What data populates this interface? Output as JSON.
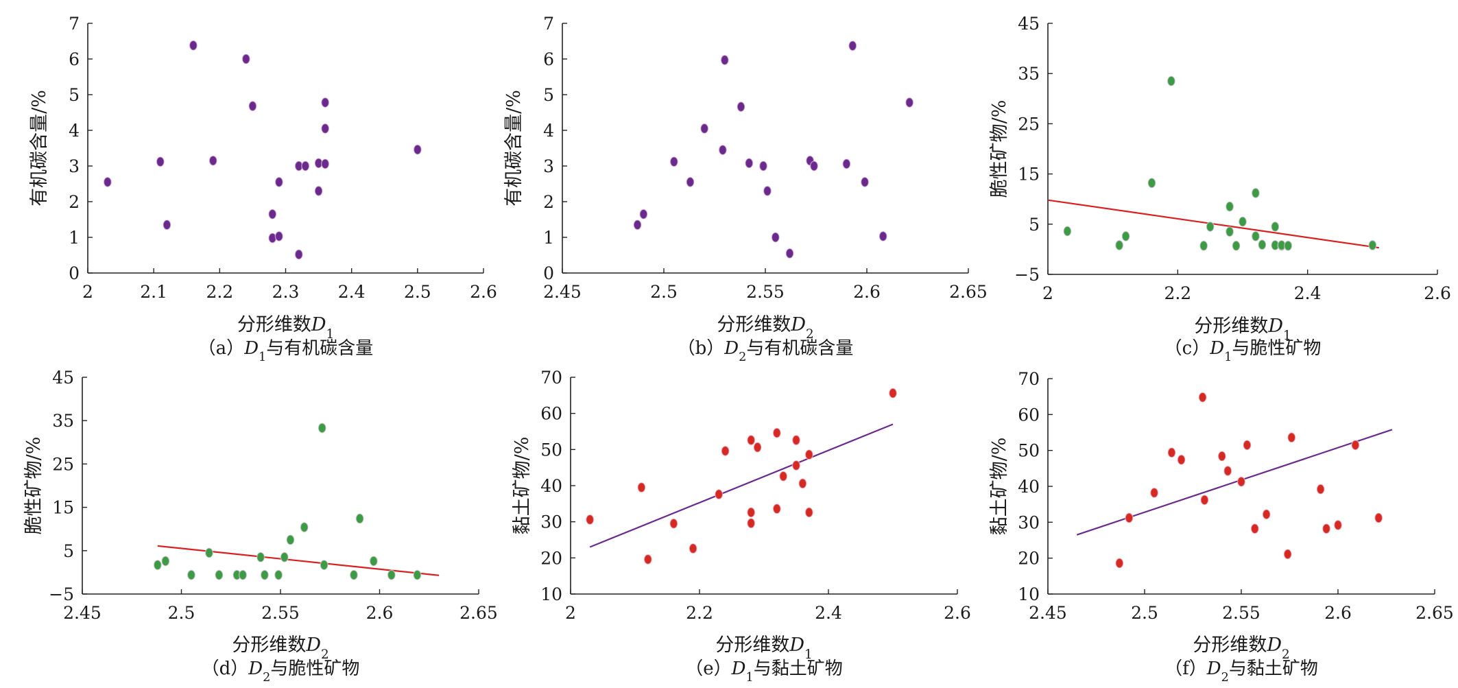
{
  "chart_data": [
    {
      "id": "a",
      "type": "scatter",
      "caption": "（a）D1与有机碳含量",
      "caption_parts": [
        {
          "t": "（a）"
        },
        {
          "t": "D",
          "it": true
        },
        {
          "t": "1",
          "sub": true
        },
        {
          "t": "与有机碳含量"
        }
      ],
      "xlabel": "分形维数D1",
      "xlabel_parts": [
        {
          "t": "分形维数"
        },
        {
          "t": "D",
          "it": true
        },
        {
          "t": "1",
          "sub": true
        }
      ],
      "ylabel": "有机碳含量/%",
      "xlim": [
        2,
        2.6
      ],
      "ylim": [
        0,
        7
      ],
      "xticks": [
        2,
        2.1,
        2.2,
        2.3,
        2.4,
        2.5,
        2.6
      ],
      "xtick_labels": [
        "2",
        "2.1",
        "2.2",
        "2.3",
        "2.4",
        "2.5",
        "2.6"
      ],
      "yticks": [
        0,
        1,
        2,
        3,
        4,
        5,
        6,
        7
      ],
      "ytick_labels": [
        "0",
        "1",
        "2",
        "3",
        "4",
        "5",
        "6",
        "7"
      ],
      "point_color": "#6a2a8c",
      "points": [
        {
          "x": 2.03,
          "y": 2.55
        },
        {
          "x": 2.11,
          "y": 3.12
        },
        {
          "x": 2.12,
          "y": 1.35
        },
        {
          "x": 2.16,
          "y": 6.38
        },
        {
          "x": 2.19,
          "y": 3.15
        },
        {
          "x": 2.24,
          "y": 6.0
        },
        {
          "x": 2.25,
          "y": 4.68
        },
        {
          "x": 2.28,
          "y": 1.65
        },
        {
          "x": 2.28,
          "y": 0.98
        },
        {
          "x": 2.29,
          "y": 1.03
        },
        {
          "x": 2.29,
          "y": 2.55
        },
        {
          "x": 2.32,
          "y": 3.0
        },
        {
          "x": 2.33,
          "y": 3.0
        },
        {
          "x": 2.32,
          "y": 0.52
        },
        {
          "x": 2.35,
          "y": 3.08
        },
        {
          "x": 2.35,
          "y": 2.3
        },
        {
          "x": 2.36,
          "y": 3.06
        },
        {
          "x": 2.36,
          "y": 4.78
        },
        {
          "x": 2.36,
          "y": 4.05
        },
        {
          "x": 2.5,
          "y": 3.46
        }
      ],
      "fit": null
    },
    {
      "id": "b",
      "type": "scatter",
      "caption": "（b）D2与有机碳含量",
      "caption_parts": [
        {
          "t": "（b）"
        },
        {
          "t": "D",
          "it": true
        },
        {
          "t": "2",
          "sub": true
        },
        {
          "t": "与有机碳含量"
        }
      ],
      "xlabel": "分形维数D2",
      "xlabel_parts": [
        {
          "t": "分形维数"
        },
        {
          "t": "D",
          "it": true
        },
        {
          "t": "2",
          "sub": true
        }
      ],
      "ylabel": "有机碳含量/%",
      "xlim": [
        2.45,
        2.65
      ],
      "ylim": [
        0,
        7
      ],
      "xticks": [
        2.45,
        2.5,
        2.55,
        2.6,
        2.65
      ],
      "xtick_labels": [
        "2.45",
        "2.5",
        "2.55",
        "2.6",
        "2.65"
      ],
      "yticks": [
        0,
        1,
        2,
        3,
        4,
        5,
        6,
        7
      ],
      "ytick_labels": [
        "0",
        "1",
        "2",
        "3",
        "4",
        "5",
        "6",
        "7"
      ],
      "point_color": "#6a2a8c",
      "points": [
        {
          "x": 2.487,
          "y": 1.35
        },
        {
          "x": 2.49,
          "y": 1.65
        },
        {
          "x": 2.505,
          "y": 3.12
        },
        {
          "x": 2.513,
          "y": 2.55
        },
        {
          "x": 2.52,
          "y": 4.05
        },
        {
          "x": 2.53,
          "y": 5.97
        },
        {
          "x": 2.529,
          "y": 3.45
        },
        {
          "x": 2.538,
          "y": 4.66
        },
        {
          "x": 2.542,
          "y": 3.08
        },
        {
          "x": 2.549,
          "y": 3.0
        },
        {
          "x": 2.551,
          "y": 2.3
        },
        {
          "x": 2.555,
          "y": 1.0
        },
        {
          "x": 2.562,
          "y": 0.55
        },
        {
          "x": 2.572,
          "y": 3.15
        },
        {
          "x": 2.574,
          "y": 3.0
        },
        {
          "x": 2.59,
          "y": 3.06
        },
        {
          "x": 2.593,
          "y": 6.37
        },
        {
          "x": 2.599,
          "y": 2.55
        },
        {
          "x": 2.608,
          "y": 1.03
        },
        {
          "x": 2.621,
          "y": 4.78
        }
      ],
      "fit": null
    },
    {
      "id": "c",
      "type": "scatter",
      "caption": "（c）D1与脆性矿物",
      "caption_parts": [
        {
          "t": "（c）"
        },
        {
          "t": "D",
          "it": true
        },
        {
          "t": "1",
          "sub": true
        },
        {
          "t": "与脆性矿物"
        }
      ],
      "xlabel": "分形维数D1",
      "xlabel_parts": [
        {
          "t": "分形维数"
        },
        {
          "t": "D",
          "it": true
        },
        {
          "t": "1",
          "sub": true
        }
      ],
      "ylabel": "脆性矿物/%",
      "xlim": [
        2,
        2.6
      ],
      "ylim": [
        -5,
        45
      ],
      "xticks": [
        2,
        2.2,
        2.4,
        2.6
      ],
      "xtick_labels": [
        "2",
        "2.2",
        "2.4",
        "2.6"
      ],
      "yticks": [
        -5,
        5,
        15,
        25,
        35,
        45
      ],
      "ytick_labels": [
        "−5",
        "5",
        "15",
        "25",
        "35",
        "45"
      ],
      "point_color": "#3d9a45",
      "fit_color": "#d92020",
      "points": [
        {
          "x": 2.03,
          "y": 3.6
        },
        {
          "x": 2.11,
          "y": 0.8
        },
        {
          "x": 2.12,
          "y": 2.6
        },
        {
          "x": 2.16,
          "y": 13.2
        },
        {
          "x": 2.19,
          "y": 33.5
        },
        {
          "x": 2.24,
          "y": 0.7
        },
        {
          "x": 2.25,
          "y": 4.5
        },
        {
          "x": 2.28,
          "y": 8.5
        },
        {
          "x": 2.28,
          "y": 3.5
        },
        {
          "x": 2.29,
          "y": 0.7
        },
        {
          "x": 2.3,
          "y": 5.5
        },
        {
          "x": 2.32,
          "y": 2.6
        },
        {
          "x": 2.32,
          "y": 11.2
        },
        {
          "x": 2.33,
          "y": 0.9
        },
        {
          "x": 2.35,
          "y": 4.5
        },
        {
          "x": 2.35,
          "y": 0.8
        },
        {
          "x": 2.36,
          "y": 0.7
        },
        {
          "x": 2.36,
          "y": 0.8
        },
        {
          "x": 2.37,
          "y": 0.7
        },
        {
          "x": 2.5,
          "y": 0.8
        }
      ],
      "fit": {
        "x": [
          2.0,
          2.51
        ],
        "y": [
          9.8,
          0.3
        ]
      }
    },
    {
      "id": "d",
      "type": "scatter",
      "caption": "（d）D2与脆性矿物",
      "caption_parts": [
        {
          "t": "（d）"
        },
        {
          "t": "D",
          "it": true
        },
        {
          "t": "2",
          "sub": true
        },
        {
          "t": "与脆性矿物"
        }
      ],
      "xlabel": "分形维数D2",
      "xlabel_parts": [
        {
          "t": "分形维数"
        },
        {
          "t": "D",
          "it": true
        },
        {
          "t": "2",
          "sub": true
        }
      ],
      "ylabel": "脆性矿物/%",
      "xlim": [
        2.45,
        2.65
      ],
      "ylim": [
        -5,
        45
      ],
      "xticks": [
        2.45,
        2.5,
        2.55,
        2.6,
        2.65
      ],
      "xtick_labels": [
        "2.45",
        "2.5",
        "2.55",
        "2.6",
        "2.65"
      ],
      "yticks": [
        -5,
        5,
        15,
        25,
        35,
        45
      ],
      "ytick_labels": [
        "−5",
        "5",
        "15",
        "25",
        "35",
        "45"
      ],
      "point_color": "#3d9a45",
      "fit_color": "#d92020",
      "points": [
        {
          "x": 2.488,
          "y": 1.7
        },
        {
          "x": 2.492,
          "y": 2.6
        },
        {
          "x": 2.505,
          "y": -0.6
        },
        {
          "x": 2.514,
          "y": 4.5
        },
        {
          "x": 2.519,
          "y": -0.6
        },
        {
          "x": 2.528,
          "y": -0.6
        },
        {
          "x": 2.531,
          "y": -0.6
        },
        {
          "x": 2.54,
          "y": 3.5
        },
        {
          "x": 2.542,
          "y": -0.6
        },
        {
          "x": 2.549,
          "y": -0.6
        },
        {
          "x": 2.552,
          "y": 3.5
        },
        {
          "x": 2.555,
          "y": 7.5
        },
        {
          "x": 2.562,
          "y": 10.4
        },
        {
          "x": 2.571,
          "y": 33.3
        },
        {
          "x": 2.572,
          "y": 1.7
        },
        {
          "x": 2.587,
          "y": -0.6
        },
        {
          "x": 2.59,
          "y": 12.4
        },
        {
          "x": 2.597,
          "y": 2.6
        },
        {
          "x": 2.606,
          "y": -0.6
        },
        {
          "x": 2.619,
          "y": -0.6
        }
      ],
      "fit": {
        "x": [
          2.488,
          2.63
        ],
        "y": [
          6.1,
          -0.7
        ]
      }
    },
    {
      "id": "e",
      "type": "scatter",
      "caption": "（e）D1与黏土矿物",
      "caption_parts": [
        {
          "t": "（e）"
        },
        {
          "t": "D",
          "it": true
        },
        {
          "t": "1",
          "sub": true
        },
        {
          "t": "与黏土矿物"
        }
      ],
      "xlabel": "分形维数D1",
      "xlabel_parts": [
        {
          "t": "分形维数"
        },
        {
          "t": "D",
          "it": true
        },
        {
          "t": "1",
          "sub": true
        }
      ],
      "ylabel": "黏土矿物/%",
      "xlim": [
        2,
        2.6
      ],
      "ylim": [
        10,
        70
      ],
      "xticks": [
        2,
        2.2,
        2.4,
        2.6
      ],
      "xtick_labels": [
        "2",
        "2.2",
        "2.4",
        "2.6"
      ],
      "yticks": [
        10,
        20,
        30,
        40,
        50,
        60,
        70
      ],
      "ytick_labels": [
        "10",
        "20",
        "30",
        "40",
        "50",
        "60",
        "70"
      ],
      "point_color": "#d42a22",
      "fit_color": "#6a2a8c",
      "points": [
        {
          "x": 2.03,
          "y": 30.6
        },
        {
          "x": 2.11,
          "y": 39.5
        },
        {
          "x": 2.12,
          "y": 19.6
        },
        {
          "x": 2.16,
          "y": 29.5
        },
        {
          "x": 2.19,
          "y": 22.6
        },
        {
          "x": 2.24,
          "y": 49.6
        },
        {
          "x": 2.28,
          "y": 52.6
        },
        {
          "x": 2.29,
          "y": 50.6
        },
        {
          "x": 2.28,
          "y": 29.6
        },
        {
          "x": 2.28,
          "y": 32.6
        },
        {
          "x": 2.32,
          "y": 54.6
        },
        {
          "x": 2.32,
          "y": 33.6
        },
        {
          "x": 2.33,
          "y": 42.6
        },
        {
          "x": 2.35,
          "y": 52.6
        },
        {
          "x": 2.35,
          "y": 45.6
        },
        {
          "x": 2.36,
          "y": 40.6
        },
        {
          "x": 2.37,
          "y": 48.6
        },
        {
          "x": 2.37,
          "y": 32.6
        },
        {
          "x": 2.23,
          "y": 37.6
        },
        {
          "x": 2.5,
          "y": 65.6
        }
      ],
      "fit": {
        "x": [
          2.03,
          2.5
        ],
        "y": [
          23.0,
          57.0
        ]
      }
    },
    {
      "id": "f",
      "type": "scatter",
      "caption": "（f）D2与黏土矿物",
      "caption_parts": [
        {
          "t": "（f）"
        },
        {
          "t": "D",
          "it": true
        },
        {
          "t": "2",
          "sub": true
        },
        {
          "t": "与黏土矿物"
        }
      ],
      "xlabel": "分形维数D2",
      "xlabel_parts": [
        {
          "t": "分形维数"
        },
        {
          "t": "D",
          "it": true
        },
        {
          "t": "2",
          "sub": true
        }
      ],
      "ylabel": "黏土矿物/%",
      "xlim": [
        2.45,
        2.65
      ],
      "ylim": [
        10,
        70
      ],
      "xticks": [
        2.45,
        2.5,
        2.55,
        2.6,
        2.65
      ],
      "xtick_labels": [
        "2.45",
        "2.5",
        "2.55",
        "2.6",
        "2.65"
      ],
      "yticks": [
        10,
        20,
        30,
        40,
        50,
        60,
        70
      ],
      "ytick_labels": [
        "10",
        "20",
        "30",
        "40",
        "50",
        "60",
        "70"
      ],
      "point_color": "#d42a22",
      "fit_color": "#6a2a8c",
      "points": [
        {
          "x": 2.487,
          "y": 18.6
        },
        {
          "x": 2.492,
          "y": 31.2
        },
        {
          "x": 2.505,
          "y": 38.2
        },
        {
          "x": 2.514,
          "y": 49.4
        },
        {
          "x": 2.519,
          "y": 47.4
        },
        {
          "x": 2.53,
          "y": 64.8
        },
        {
          "x": 2.531,
          "y": 36.2
        },
        {
          "x": 2.54,
          "y": 48.4
        },
        {
          "x": 2.543,
          "y": 44.3
        },
        {
          "x": 2.55,
          "y": 41.3
        },
        {
          "x": 2.553,
          "y": 51.5
        },
        {
          "x": 2.557,
          "y": 28.2
        },
        {
          "x": 2.563,
          "y": 32.2
        },
        {
          "x": 2.574,
          "y": 21.1
        },
        {
          "x": 2.576,
          "y": 53.6
        },
        {
          "x": 2.591,
          "y": 39.2
        },
        {
          "x": 2.594,
          "y": 28.2
        },
        {
          "x": 2.6,
          "y": 29.2
        },
        {
          "x": 2.609,
          "y": 51.5
        },
        {
          "x": 2.621,
          "y": 31.2
        }
      ],
      "fit": {
        "x": [
          2.465,
          2.628
        ],
        "y": [
          26.5,
          55.8
        ]
      }
    }
  ]
}
